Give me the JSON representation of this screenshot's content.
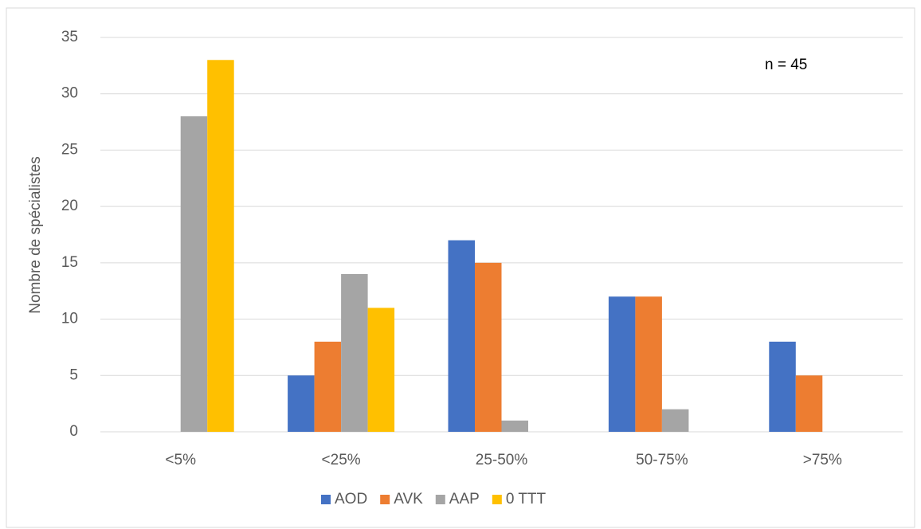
{
  "chart_data": {
    "type": "bar",
    "categories": [
      "<5%",
      "<25%",
      "25-50%",
      "50-75%",
      ">75%"
    ],
    "series": [
      {
        "name": "AOD",
        "color": "#4472c4",
        "values": [
          0,
          5,
          17,
          12,
          8
        ]
      },
      {
        "name": "AVK",
        "color": "#ed7d31",
        "values": [
          0,
          8,
          15,
          12,
          5
        ]
      },
      {
        "name": "AAP",
        "color": "#a5a5a5",
        "values": [
          28,
          14,
          1,
          2,
          0
        ]
      },
      {
        "name": "0 TTT",
        "color": "#ffc000",
        "values": [
          33,
          11,
          0,
          0,
          0
        ]
      }
    ],
    "y_label": "Nombre de spécialistes",
    "annotation": "n = 45",
    "ylim": [
      0,
      35
    ],
    "yticks": [
      0,
      5,
      10,
      15,
      20,
      25,
      30,
      35
    ],
    "grid": true,
    "legend": "bottom"
  }
}
